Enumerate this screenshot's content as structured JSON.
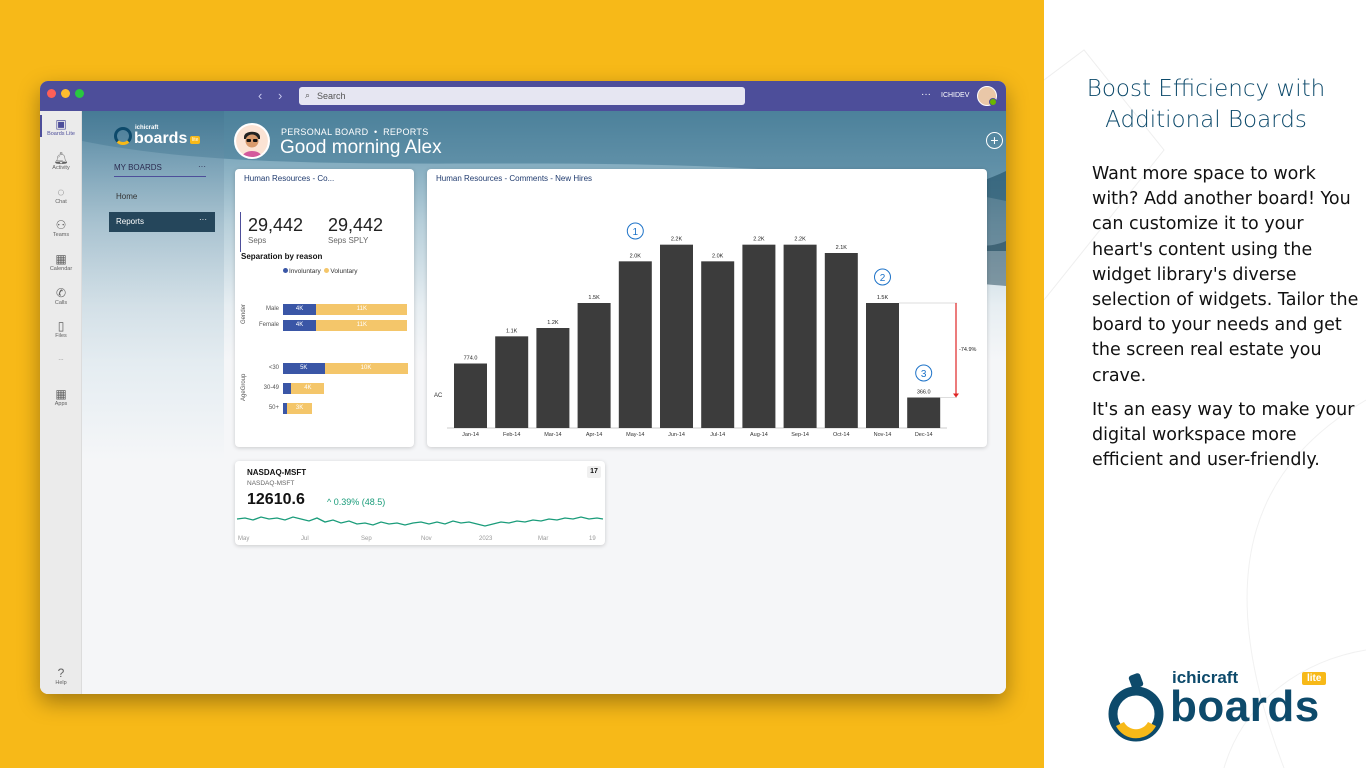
{
  "window": {
    "search_placeholder": "Search",
    "user_name": "ICHIDEV",
    "more_label": "···"
  },
  "rail": {
    "items": [
      {
        "label": "Boards Lite",
        "icon": "boards-icon"
      },
      {
        "label": "Activity",
        "icon": "bell-icon"
      },
      {
        "label": "Chat",
        "icon": "chat-icon"
      },
      {
        "label": "Teams",
        "icon": "teams-icon"
      },
      {
        "label": "Calendar",
        "icon": "calendar-icon"
      },
      {
        "label": "Calls",
        "icon": "phone-icon"
      },
      {
        "label": "Files",
        "icon": "file-icon"
      },
      {
        "label": "···",
        "icon": "more-icon"
      },
      {
        "label": "Apps",
        "icon": "apps-icon"
      },
      {
        "label": "Help",
        "icon": "help-icon"
      }
    ]
  },
  "nav": {
    "logo_small": "ichicraft",
    "logo_big": "boards",
    "logo_badge": "lite",
    "my_boards": "MY BOARDS",
    "more": "···",
    "home": "Home",
    "reports": "Reports"
  },
  "header": {
    "breadcrumb_board": "PERSONAL BOARD",
    "breadcrumb_sep": "•",
    "breadcrumb_page": "REPORTS",
    "greeting": "Good morning Alex",
    "add_label": "+",
    "more_label": "···"
  },
  "hr_card": {
    "title": "Human Resources - Co...",
    "kpi1_value": "29,442",
    "kpi1_caption": "Seps",
    "kpi2_value": "29,442",
    "kpi2_caption": "Seps SPLY",
    "chart_title": "Separation by reason",
    "legend_involuntary": "Involuntary",
    "legend_voluntary": "Voluntary",
    "axis_gender": "Gender",
    "axis_agegroup": "AgeGroup",
    "colors": {
      "involuntary": "#3a56a6",
      "voluntary": "#f4c66a"
    }
  },
  "chart_card": {
    "title": "Human Resources - Comments - New Hires",
    "series_label": "AC",
    "variance_label": "-74.9%",
    "markers": [
      "1",
      "2",
      "3"
    ],
    "bar_color": "#3c3c3c",
    "variance_color": "#e02424"
  },
  "nasdaq": {
    "name": "NASDAQ-MSFT",
    "sub": "NASDAQ-MSFT",
    "price": "12610.6",
    "change": "^ 0.39% (48.5)",
    "logo": "17",
    "x_labels": [
      "May",
      "Jul",
      "Sep",
      "Nov",
      "2023",
      "Mar",
      "19"
    ],
    "line_color": "#1a9c7a"
  },
  "promo": {
    "title": "Boost Efficiency with Additional Boards",
    "para1": "Want more space to work with? Add another board! You can customize it to your heart's content using the widget library's diverse selection of widgets. Tailor the board to your needs and get the screen real estate you crave.",
    "para2": "It's an easy way to make your digital workspace more efficient and user-friendly.",
    "logo_small": "ichicraft",
    "logo_big": "boards",
    "logo_badge": "lite",
    "accent_color": "#f7b918",
    "brand_color": "#0d4a6b"
  },
  "chart_data": [
    {
      "type": "bar",
      "orientation": "horizontal",
      "stacked": true,
      "title": "Separation by reason",
      "groups": [
        {
          "name": "Gender",
          "categories": [
            "Male",
            "Female"
          ]
        },
        {
          "name": "AgeGroup",
          "categories": [
            "<30",
            "30-49",
            "50+"
          ]
        }
      ],
      "series": [
        {
          "name": "Involuntary",
          "values": [
            4,
            4,
            5,
            1,
            0.5
          ],
          "labels": [
            "4K",
            "4K",
            "5K",
            "",
            ""
          ]
        },
        {
          "name": "Voluntary",
          "values": [
            11,
            11,
            10,
            4,
            3
          ],
          "labels": [
            "11K",
            "11K",
            "10K",
            "4K",
            "3K"
          ]
        }
      ]
    },
    {
      "type": "bar",
      "title": "Human Resources - Comments - New Hires",
      "categories": [
        "Jan-14",
        "Feb-14",
        "Mar-14",
        "Apr-14",
        "May-14",
        "Jun-14",
        "Jul-14",
        "Aug-14",
        "Sep-14",
        "Oct-14",
        "Nov-14",
        "Dec-14"
      ],
      "values": [
        774,
        1100,
        1200,
        1500,
        2000,
        2200,
        2000,
        2200,
        2200,
        2100,
        1500,
        366
      ],
      "value_labels": [
        "774.0",
        "1.1K",
        "1.2K",
        "1.5K",
        "2.0K",
        "2.2K",
        "2.0K",
        "2.2K",
        "2.2K",
        "2.1K",
        "1.5K",
        "366.0"
      ],
      "series_name": "AC",
      "annotation": "-74.9%"
    },
    {
      "type": "line",
      "title": "NASDAQ-MSFT",
      "x": [
        "May",
        "Jul",
        "Sep",
        "Nov",
        "2023",
        "Mar",
        "19"
      ],
      "last_value": 12610.6
    }
  ]
}
